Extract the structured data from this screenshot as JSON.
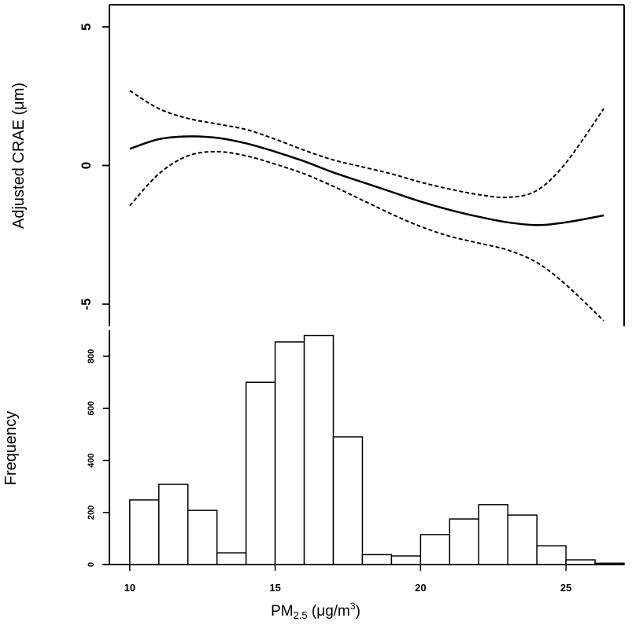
{
  "chart_data": [
    {
      "type": "line",
      "panel": "top",
      "title": "",
      "xlabel": "",
      "ylabel": "Adjusted CRAE (μm)",
      "xlim": [
        9.3,
        27.0
      ],
      "ylim": [
        -5.8,
        5.8
      ],
      "yticks": [
        -5,
        0,
        5
      ],
      "grid": false,
      "legend": "none",
      "series": [
        {
          "style": "solid",
          "x": [
            10.0,
            11.0,
            12.0,
            13.0,
            14.0,
            15.0,
            16.0,
            17.0,
            18.0,
            19.0,
            20.0,
            21.0,
            22.0,
            23.0,
            24.0,
            25.0,
            26.3
          ],
          "values": [
            0.6,
            0.95,
            1.05,
            1.0,
            0.8,
            0.5,
            0.15,
            -0.25,
            -0.6,
            -0.95,
            -1.3,
            -1.6,
            -1.85,
            -2.05,
            -2.15,
            -2.05,
            -1.8
          ]
        },
        {
          "style": "dashed",
          "x": [
            10.0,
            11.0,
            12.0,
            13.0,
            14.0,
            15.0,
            16.0,
            17.0,
            18.0,
            19.0,
            20.0,
            21.0,
            22.0,
            23.0,
            24.0,
            25.0,
            26.3
          ],
          "values": [
            2.7,
            2.05,
            1.7,
            1.5,
            1.3,
            0.95,
            0.55,
            0.2,
            -0.05,
            -0.3,
            -0.6,
            -0.85,
            -1.05,
            -1.15,
            -0.9,
            0.1,
            2.05
          ]
        },
        {
          "style": "dashed",
          "x": [
            10.0,
            11.0,
            12.0,
            13.0,
            14.0,
            15.0,
            16.0,
            17.0,
            18.0,
            19.0,
            20.0,
            21.0,
            22.0,
            23.0,
            24.0,
            25.0,
            26.3
          ],
          "values": [
            -1.45,
            -0.3,
            0.35,
            0.5,
            0.35,
            0.05,
            -0.3,
            -0.75,
            -1.25,
            -1.75,
            -2.2,
            -2.55,
            -2.8,
            -3.05,
            -3.5,
            -4.3,
            -5.6
          ]
        }
      ]
    },
    {
      "type": "bar",
      "panel": "bottom",
      "title": "",
      "xlabel": "PM",
      "xlabel_sub": "2.5",
      "xlabel_units_pre": " (μg/m",
      "xlabel_units_sup": "3",
      "xlabel_units_post": ")",
      "ylabel": "Frequency",
      "xlim": [
        9.3,
        27.0
      ],
      "xticks": [
        10,
        15,
        20,
        25
      ],
      "ylim": [
        0,
        900
      ],
      "yticks": [
        0,
        200,
        400,
        600,
        800
      ],
      "grid": false,
      "legend": "none",
      "bin_width": 1,
      "bin_starts": [
        10,
        11,
        12,
        13,
        14,
        15,
        16,
        17,
        18,
        19,
        20,
        21,
        22,
        23,
        24,
        25,
        26
      ],
      "values": [
        248,
        308,
        208,
        45,
        700,
        855,
        880,
        490,
        38,
        33,
        115,
        175,
        230,
        190,
        72,
        18,
        5
      ]
    }
  ]
}
